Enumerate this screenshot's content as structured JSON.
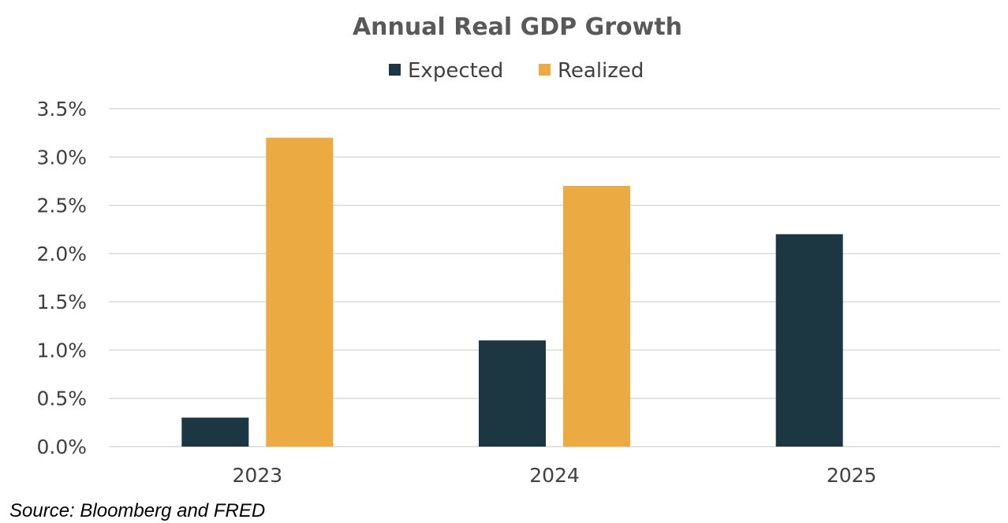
{
  "chart_data": {
    "type": "bar",
    "title": "Annual Real GDP Growth",
    "categories": [
      "2023",
      "2024",
      "2025"
    ],
    "series": [
      {
        "name": "Expected",
        "values": [
          0.3,
          1.1,
          2.2
        ],
        "color": "#1c3742"
      },
      {
        "name": "Realized",
        "values": [
          3.2,
          2.7,
          null
        ],
        "color": "#ebaa42"
      }
    ],
    "ylim": [
      0,
      3.5
    ],
    "yticks": [
      "0.0%",
      "0.5%",
      "1.0%",
      "1.5%",
      "2.0%",
      "2.5%",
      "3.0%",
      "3.5%"
    ],
    "ytick_values": [
      0,
      0.5,
      1.0,
      1.5,
      2.0,
      2.5,
      3.0,
      3.5
    ],
    "grid": true,
    "legend_position": "top-center",
    "xlabel": "",
    "ylabel": ""
  },
  "source": "Source: Bloomberg and FRED"
}
